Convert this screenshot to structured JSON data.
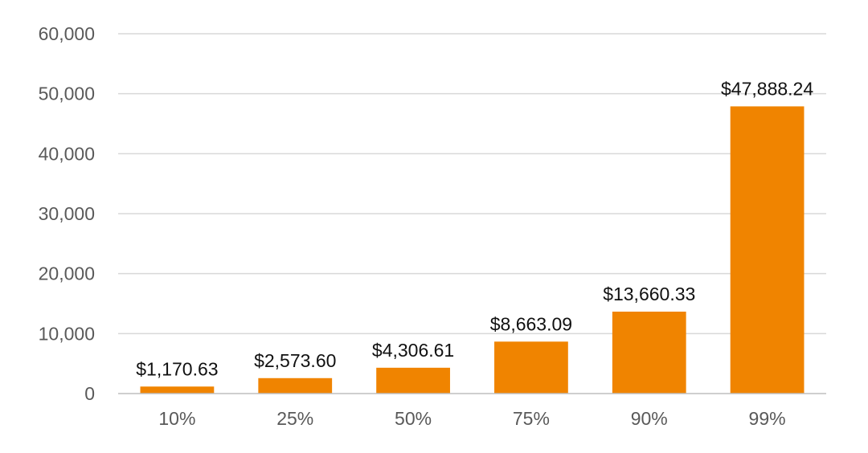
{
  "chart_data": {
    "type": "bar",
    "title": "",
    "xlabel": "",
    "ylabel": "",
    "categories": [
      "10%",
      "25%",
      "50%",
      "75%",
      "90%",
      "99%"
    ],
    "values": [
      1170.63,
      2573.6,
      4306.61,
      8663.09,
      13660.33,
      47888.24
    ],
    "data_labels": [
      "$1,170.63",
      "$2,573.60",
      "$4,306.61",
      "$8,663.09",
      "$13,660.33",
      "$47,888.24"
    ],
    "ylim": [
      0,
      60000
    ],
    "y_ticks": [
      0,
      10000,
      20000,
      30000,
      40000,
      50000,
      60000
    ],
    "y_tick_labels": [
      "0",
      "10,000",
      "20,000",
      "30,000",
      "40,000",
      "50,000",
      "60,000"
    ],
    "grid": true,
    "legend": "none",
    "bar_color": "#f08400"
  }
}
